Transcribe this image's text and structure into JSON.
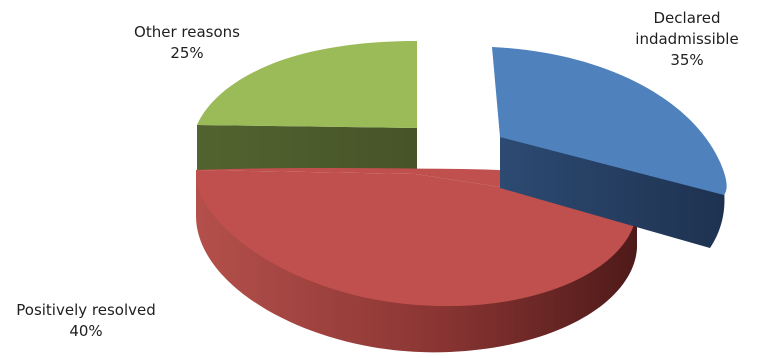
{
  "colors": {
    "declared_top": "#4f81bd",
    "declared_side": "#263d5e",
    "positive_top": "#c0504d",
    "positive_side_light": "#a9433f",
    "positive_side_dark": "#5c2120",
    "other_top": "#9bbb59",
    "other_side": "#4e5e2d"
  },
  "chart_data": {
    "type": "pie",
    "three_d": true,
    "slices": [
      {
        "label_line1": "Declared",
        "label_line2": "indadmissible",
        "percent_label": "35%",
        "value": 35,
        "exploded": true,
        "color": "#4f81bd"
      },
      {
        "label_line1": "Positively resolved",
        "label_line2": "",
        "percent_label": "40%",
        "value": 40,
        "exploded": false,
        "color": "#c0504d"
      },
      {
        "label_line1": "Other reasons",
        "label_line2": "",
        "percent_label": "25%",
        "value": 25,
        "exploded": false,
        "color": "#9bbb59"
      }
    ]
  }
}
